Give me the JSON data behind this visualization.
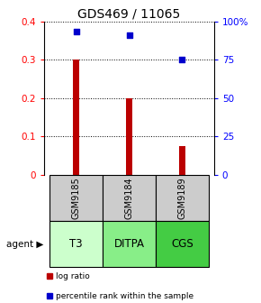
{
  "title": "GDS469 / 11065",
  "samples": [
    "GSM9185",
    "GSM9184",
    "GSM9189"
  ],
  "agents": [
    "T3",
    "DITPA",
    "CGS"
  ],
  "log_ratios": [
    0.3,
    0.2,
    0.075
  ],
  "percentile_ranks": [
    93,
    91,
    75
  ],
  "bar_color": "#bb0000",
  "dot_color": "#0000cc",
  "ylim_left": [
    0,
    0.4
  ],
  "ylim_right": [
    0,
    100
  ],
  "yticks_left": [
    0,
    0.1,
    0.2,
    0.3,
    0.4
  ],
  "yticks_right": [
    0,
    25,
    50,
    75,
    100
  ],
  "ytick_labels_left": [
    "0",
    "0.1",
    "0.2",
    "0.3",
    "0.4"
  ],
  "ytick_labels_right": [
    "0",
    "25",
    "50",
    "75",
    "100%"
  ],
  "agent_colors": [
    "#ccffcc",
    "#88ee88",
    "#44cc44"
  ],
  "gsm_bg": "#cccccc",
  "legend_log": "log ratio",
  "legend_pct": "percentile rank within the sample",
  "bar_width": 0.12,
  "title_fontsize": 10,
  "tick_fontsize": 7.5,
  "label_fontsize": 7.5,
  "agent_fontsize": 8.5,
  "gsm_fontsize": 7.0
}
